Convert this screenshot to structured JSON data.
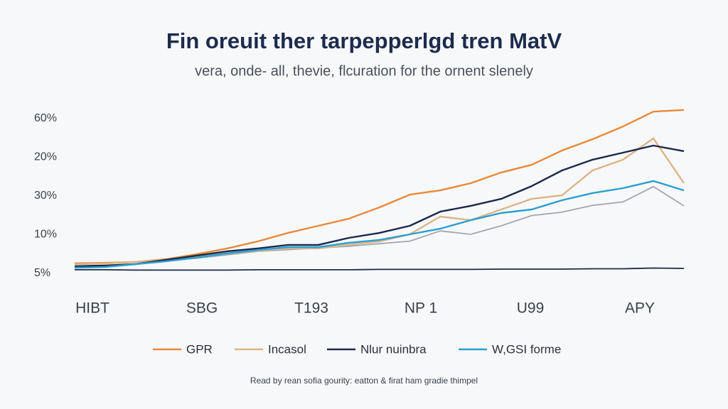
{
  "chart_data": {
    "type": "line",
    "title": "Fin oreuit ther tarpepperlgd tren MatV",
    "subtitle": "vera, onde- all, thevie, flcuration for the ornent slenely",
    "footer": "Read by rean sofia gourity: eatton & firat ham gradie thimpel",
    "categories": [
      "HIBT",
      "SBG",
      "T193",
      "NP 1",
      "U99",
      "APY"
    ],
    "y_labels": [
      "60%",
      "20%",
      "30%",
      "10%",
      "5%"
    ],
    "x": [
      0,
      1,
      2,
      3,
      4,
      5,
      6,
      7,
      8,
      9,
      10,
      11,
      12,
      13,
      14,
      15,
      16,
      17,
      18,
      19,
      20
    ],
    "xlim": [
      0,
      20
    ],
    "ylim": [
      0,
      100
    ],
    "series": [
      {
        "name": "GPR",
        "color": "#e8893a",
        "values": [
          8,
          8.3,
          8.8,
          10.4,
          13.3,
          16.7,
          20.8,
          25.8,
          30,
          34.2,
          40.8,
          48.3,
          50.8,
          55,
          61.3,
          65.8,
          74.2,
          80.8,
          88.3,
          97,
          98
        ]
      },
      {
        "name": "Incasol",
        "color": "#dcb487",
        "values": [
          7.5,
          7.9,
          8.8,
          10,
          11.7,
          13.8,
          15.4,
          16.7,
          16.7,
          18.8,
          20.8,
          25,
          35.4,
          33.3,
          39.6,
          45.8,
          47.9,
          62.5,
          68.8,
          81.3,
          55
        ]
      },
      {
        "name": "Nlur nuinbra",
        "color": "#1b2a4a",
        "values": [
          6.3,
          6.7,
          7.5,
          10,
          12.5,
          15,
          16.7,
          18.8,
          18.8,
          22.9,
          25.8,
          30,
          38.3,
          41.7,
          45.8,
          53.3,
          62.5,
          68.8,
          72.9,
          77.1,
          73.8
        ]
      },
      {
        "name": "W,GSI forme",
        "color": "#2a9fd0",
        "values": [
          5.4,
          5.8,
          7.5,
          9.2,
          11.3,
          13.8,
          15.8,
          17.5,
          17.5,
          20,
          21.7,
          25,
          28.3,
          33.3,
          37.5,
          39.6,
          45,
          49.2,
          52.1,
          56.3,
          50.8
        ]
      },
      {
        "color": "#a3a7ad",
        "values": [
          6,
          6.5,
          7.5,
          9.5,
          11,
          13,
          15,
          16,
          17,
          18,
          19.5,
          21,
          27,
          25,
          30,
          36,
          38,
          42,
          44,
          53,
          41.7
        ]
      },
      {
        "color": "#1b2a4a",
        "values": [
          4.2,
          4.2,
          4.0,
          4.0,
          4.0,
          4.0,
          4.2,
          4.2,
          4.2,
          4.2,
          4.4,
          4.4,
          4.4,
          4.4,
          4.6,
          4.6,
          4.6,
          4.8,
          4.8,
          5.2,
          5.0
        ]
      }
    ]
  }
}
